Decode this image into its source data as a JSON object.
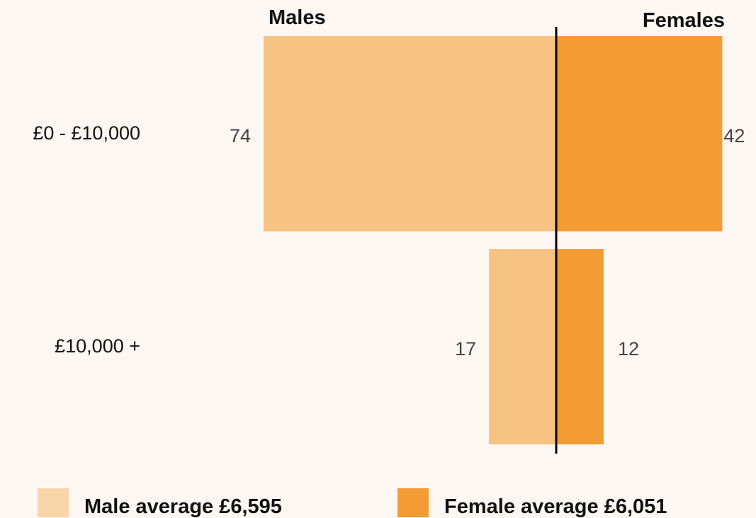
{
  "colors": {
    "male": "#f6c383",
    "female": "#f39c33",
    "male_legend": "#f8d4a9",
    "female_legend": "#f39c33",
    "axis_line": "#000000",
    "background": "#fdf7f3"
  },
  "chart_data": {
    "type": "bar",
    "orientation": "horizontal-diverging",
    "title": "",
    "categories": [
      "£0 - £10,000",
      "£10,000 +"
    ],
    "series": [
      {
        "name": "Males",
        "values": [
          74,
          17
        ]
      },
      {
        "name": "Females",
        "values": [
          42,
          12
        ]
      }
    ],
    "data_labels": {
      "Males": [
        "74",
        "17"
      ],
      "Females": [
        "42",
        "12"
      ]
    },
    "column_headers": {
      "left": "Males",
      "right": "Females"
    },
    "grid": false,
    "legend_position": "bottom",
    "legend": [
      {
        "label": "Male average £6,595",
        "color": "#f8d4a9"
      },
      {
        "label": "Female average £6,051",
        "color": "#f39c33"
      }
    ]
  }
}
